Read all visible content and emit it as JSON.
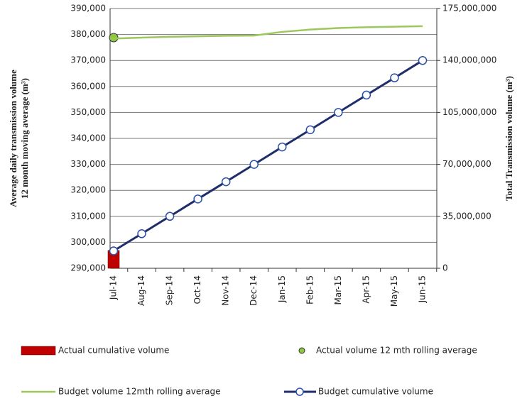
{
  "chart_data": {
    "type": "combo",
    "categories": [
      "Jul-14",
      "Aug-14",
      "Sep-14",
      "Oct-14",
      "Nov-14",
      "Dec-14",
      "Jan-15",
      "Feb-15",
      "Mar-15",
      "Apr-15",
      "May-15",
      "Jun-15"
    ],
    "y_label_lines": [
      "Average daily transmission volume",
      "12 month moving average (m³)"
    ],
    "y2_label": "Total Transmission volume (m³)",
    "ylim": [
      290000,
      390000
    ],
    "yticks": [
      {
        "value": 290000,
        "label": "290,000"
      },
      {
        "value": 300000,
        "label": "300,000"
      },
      {
        "value": 310000,
        "label": "310,000"
      },
      {
        "value": 320000,
        "label": "320,000"
      },
      {
        "value": 330000,
        "label": "330,000"
      },
      {
        "value": 340000,
        "label": "340,000"
      },
      {
        "value": 350000,
        "label": "350,000"
      },
      {
        "value": 360000,
        "label": "360,000"
      },
      {
        "value": 370000,
        "label": "370,000"
      },
      {
        "value": 380000,
        "label": "380,000"
      },
      {
        "value": 390000,
        "label": "390,000"
      }
    ],
    "y2lim": [
      0,
      175000000
    ],
    "y2ticks": [
      0,
      {
        "value": 35000000,
        "label": "35,000,000"
      },
      {
        "value": 70000000,
        "label": "70,000,000"
      },
      {
        "value": 105000000,
        "label": "105,000,000"
      },
      {
        "value": 140000000,
        "label": "140,000,000"
      },
      {
        "value": 175000000,
        "label": "175,000,000"
      }
    ],
    "grid": true,
    "series": [
      {
        "name": "Actual cumulative volume",
        "type": "bar",
        "axis": "y2",
        "color": "#c00000",
        "values": [
          12000000,
          null,
          null,
          null,
          null,
          null,
          null,
          null,
          null,
          null,
          null,
          null
        ]
      },
      {
        "name": "Actual volume 12 mth rolling average",
        "type": "scatter",
        "color": "#8dc63f",
        "values": [
          378800,
          null,
          null,
          null,
          null,
          null,
          null,
          null,
          null,
          null,
          null,
          null
        ]
      },
      {
        "name": "Budget volume 12mth rolling average",
        "type": "line",
        "color": "#9bc85a",
        "values": [
          378400,
          378800,
          379100,
          379300,
          379500,
          379600,
          381000,
          381900,
          382500,
          382800,
          383000,
          383200
        ]
      },
      {
        "name": "Budget cumulative volume",
        "type": "line-marker",
        "axis": "y2",
        "color": "#1f2d6b",
        "values": [
          11700000,
          23300000,
          35000000,
          46700000,
          58300000,
          70000000,
          81700000,
          93300000,
          105000000,
          116700000,
          128300000,
          140000000
        ]
      }
    ]
  }
}
